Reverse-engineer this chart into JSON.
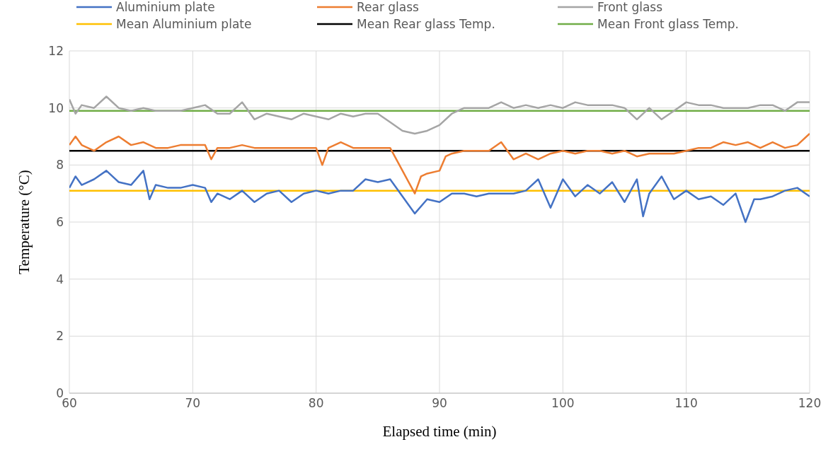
{
  "chart_data": {
    "type": "line",
    "xlabel": "Elapsed time (min)",
    "ylabel": "Temperature (°C)",
    "xlim": [
      60,
      120
    ],
    "xticks": [
      60,
      70,
      80,
      90,
      100,
      110,
      120
    ],
    "ylim": [
      0,
      12
    ],
    "yticks": [
      0,
      2,
      4,
      6,
      8,
      10,
      12
    ],
    "grid": true,
    "legend": "top",
    "marker": "none",
    "series": [
      {
        "name": "Aluminium plate",
        "color": "#4472c4",
        "x": [
          60,
          60.5,
          61,
          62,
          63,
          64,
          65,
          66,
          66.5,
          67,
          68,
          69,
          70,
          71,
          71.5,
          72,
          73,
          74,
          75,
          76,
          77,
          78,
          79,
          80,
          81,
          82,
          83,
          84,
          85,
          86,
          87,
          88,
          89,
          90,
          91,
          92,
          93,
          94,
          95,
          96,
          97,
          98,
          99,
          100,
          101,
          102,
          103,
          104,
          105,
          106,
          106.5,
          107,
          108,
          109,
          110,
          111,
          112,
          113,
          114,
          114.8,
          115.5,
          116,
          117,
          118,
          119,
          120
        ],
        "values": [
          7.2,
          7.6,
          7.3,
          7.5,
          7.8,
          7.4,
          7.3,
          7.8,
          6.8,
          7.3,
          7.2,
          7.2,
          7.3,
          7.2,
          6.7,
          7.0,
          6.8,
          7.1,
          6.7,
          7.0,
          7.1,
          6.7,
          7.0,
          7.1,
          7.0,
          7.1,
          7.1,
          7.5,
          7.4,
          7.5,
          6.9,
          6.3,
          6.8,
          6.7,
          7.0,
          7.0,
          6.9,
          7.0,
          7.0,
          7.0,
          7.1,
          7.5,
          6.5,
          7.5,
          6.9,
          7.3,
          7.0,
          7.4,
          6.7,
          7.5,
          6.2,
          7.0,
          7.6,
          6.8,
          7.1,
          6.8,
          6.9,
          6.6,
          7.0,
          6.0,
          6.8,
          6.8,
          6.9,
          7.1,
          7.2,
          6.9
        ]
      },
      {
        "name": "Rear glass",
        "color": "#ed7d31",
        "x": [
          60,
          60.5,
          61,
          62,
          63,
          64,
          65,
          66,
          67,
          68,
          69,
          70,
          71,
          71.5,
          72,
          73,
          74,
          75,
          76,
          77,
          78,
          79,
          80,
          80.5,
          81,
          82,
          83,
          84,
          85,
          86,
          87,
          88,
          88.5,
          89,
          90,
          90.5,
          91,
          92,
          93,
          94,
          95,
          96,
          97,
          98,
          99,
          100,
          101,
          102,
          103,
          104,
          105,
          106,
          107,
          108,
          109,
          110,
          111,
          112,
          113,
          114,
          115,
          116,
          117,
          118,
          119,
          120
        ],
        "values": [
          8.7,
          9.0,
          8.7,
          8.5,
          8.8,
          9.0,
          8.7,
          8.8,
          8.6,
          8.6,
          8.7,
          8.7,
          8.7,
          8.2,
          8.6,
          8.6,
          8.7,
          8.6,
          8.6,
          8.6,
          8.6,
          8.6,
          8.6,
          8.0,
          8.6,
          8.8,
          8.6,
          8.6,
          8.6,
          8.6,
          7.8,
          7.0,
          7.6,
          7.7,
          7.8,
          8.3,
          8.4,
          8.5,
          8.5,
          8.5,
          8.8,
          8.2,
          8.4,
          8.2,
          8.4,
          8.5,
          8.4,
          8.5,
          8.5,
          8.4,
          8.5,
          8.3,
          8.4,
          8.4,
          8.4,
          8.5,
          8.6,
          8.6,
          8.8,
          8.7,
          8.8,
          8.6,
          8.8,
          8.6,
          8.7,
          9.1
        ]
      },
      {
        "name": "Front glass",
        "color": "#a5a5a5",
        "x": [
          60,
          60.5,
          61,
          62,
          63,
          64,
          65,
          66,
          67,
          68,
          69,
          70,
          71,
          72,
          73,
          74,
          75,
          76,
          77,
          78,
          79,
          80,
          81,
          82,
          83,
          84,
          85,
          86,
          87,
          88,
          89,
          90,
          91,
          92,
          93,
          94,
          95,
          96,
          97,
          98,
          99,
          100,
          101,
          102,
          103,
          104,
          105,
          106,
          107,
          108,
          109,
          110,
          111,
          112,
          113,
          114,
          115,
          116,
          117,
          118,
          119,
          120
        ],
        "values": [
          10.3,
          9.8,
          10.1,
          10.0,
          10.4,
          10.0,
          9.9,
          10.0,
          9.9,
          9.9,
          9.9,
          10.0,
          10.1,
          9.8,
          9.8,
          10.2,
          9.6,
          9.8,
          9.7,
          9.6,
          9.8,
          9.7,
          9.6,
          9.8,
          9.7,
          9.8,
          9.8,
          9.5,
          9.2,
          9.1,
          9.2,
          9.4,
          9.8,
          10.0,
          10.0,
          10.0,
          10.2,
          10.0,
          10.1,
          10.0,
          10.1,
          10.0,
          10.2,
          10.1,
          10.1,
          10.1,
          10.0,
          9.6,
          10.0,
          9.6,
          9.9,
          10.2,
          10.1,
          10.1,
          10.0,
          10.0,
          10.0,
          10.1,
          10.1,
          9.9,
          10.2,
          10.2
        ]
      },
      {
        "name": "Mean Aluminium plate",
        "color": "#ffc000",
        "x": [
          60,
          120
        ],
        "values": [
          7.1,
          7.1
        ]
      },
      {
        "name": "Mean Rear glass Temp.",
        "color": "#000000",
        "x": [
          60,
          120
        ],
        "values": [
          8.5,
          8.5
        ]
      },
      {
        "name": "Mean Front glass Temp.",
        "color": "#70ad47",
        "x": [
          60,
          120
        ],
        "values": [
          9.9,
          9.9
        ]
      }
    ]
  }
}
